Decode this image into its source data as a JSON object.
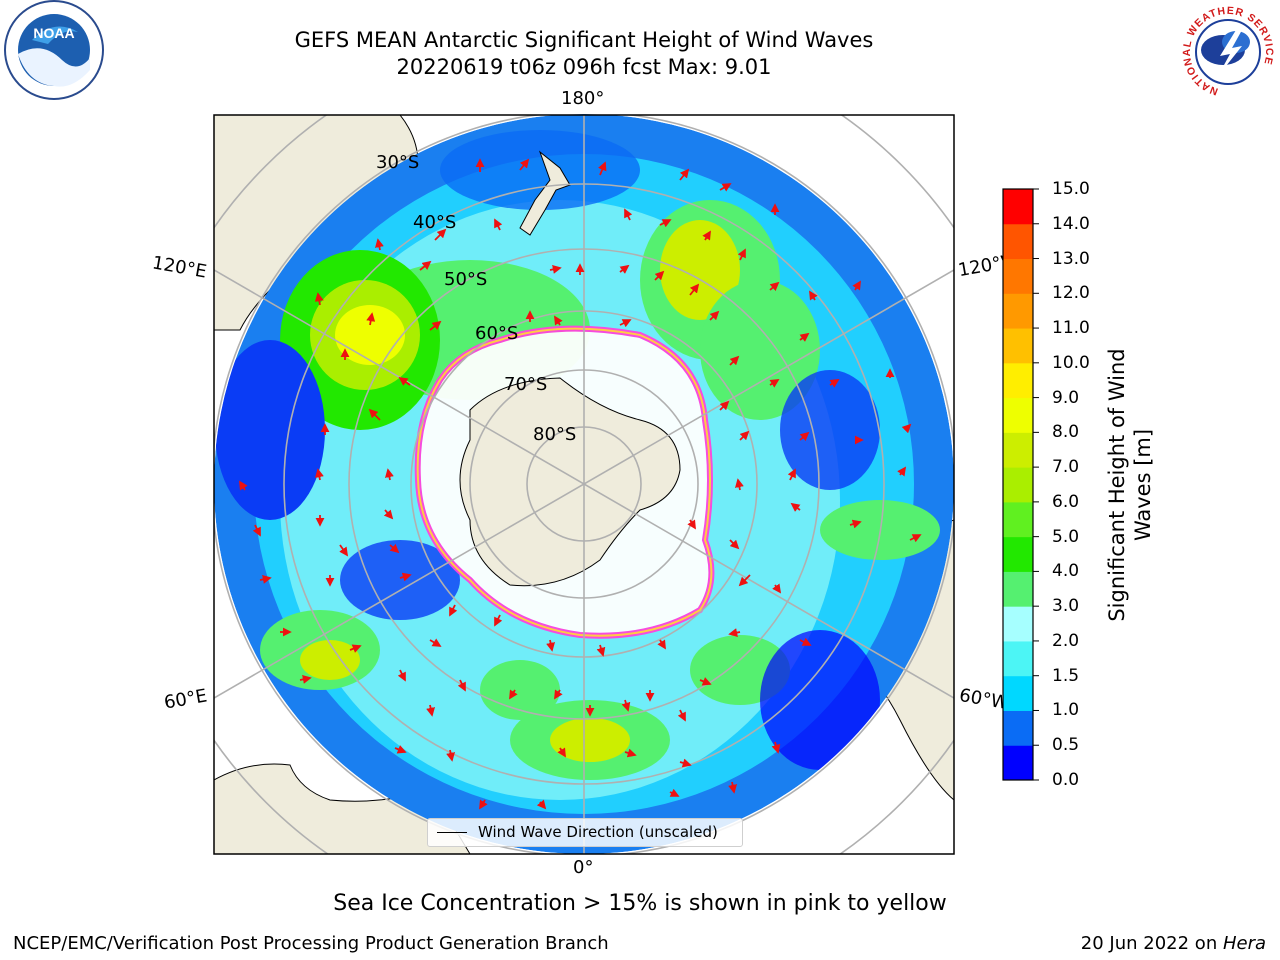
{
  "title": {
    "line1": "GEFS MEAN Antarctic Significant Height of Wind Waves",
    "line2": "20220619 t06z 096h fcst   Max: 9.01"
  },
  "map": {
    "projection": "south-polar-stereographic",
    "lon_labels": {
      "top": "180°",
      "bottom": "0°",
      "upper_left": "120°E",
      "upper_right": "120°W",
      "lower_left": "60°E",
      "lower_right": "60°W"
    },
    "lat_labels": [
      "30°S",
      "40°S",
      "50°S",
      "60°S",
      "70°S",
      "80°S"
    ],
    "legend": {
      "label": "Wind Wave Direction (unscaled)"
    },
    "colors": {
      "land": "#efecdc",
      "ice": "#ffffff",
      "ice_edge": "#ff44dd",
      "arrows": "#ee1111",
      "grid": "#b0b0b0"
    }
  },
  "colorbar": {
    "label": "Significant Height of Wind Waves [m]",
    "label_lines": [
      "Significant Height of Wind",
      "Waves [m]"
    ],
    "ticks": [
      "0.0",
      "0.5",
      "1.0",
      "1.5",
      "2.0",
      "3.0",
      "4.0",
      "5.0",
      "6.0",
      "7.0",
      "8.0",
      "9.0",
      "10.0",
      "11.0",
      "12.0",
      "13.0",
      "14.0",
      "15.0"
    ],
    "colors": [
      "#0000ff",
      "#0a6cf5",
      "#00d8ff",
      "#4cf5f5",
      "#a6ffff",
      "#55f070",
      "#22e800",
      "#60f020",
      "#aaee00",
      "#ccee00",
      "#eeff00",
      "#ffee00",
      "#ffc000",
      "#ff9900",
      "#ff7700",
      "#ff5500",
      "#ff0000"
    ]
  },
  "note": "Sea Ice Concentration > 15% is shown in pink to yellow",
  "footer": {
    "left": "NCEP/EMC/Verification Post Processing Product Generation Branch",
    "right_date": "20 Jun 2022 on ",
    "right_host": "Hera"
  },
  "logos": {
    "noaa": "NOAA",
    "nws_ring": "NATIONAL WEATHER SERVICE"
  }
}
